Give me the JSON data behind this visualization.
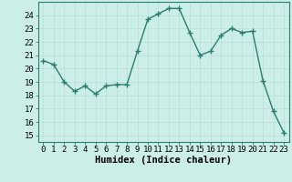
{
  "x": [
    0,
    1,
    2,
    3,
    4,
    5,
    6,
    7,
    8,
    9,
    10,
    11,
    12,
    13,
    14,
    15,
    16,
    17,
    18,
    19,
    20,
    21,
    22,
    23
  ],
  "y": [
    20.6,
    20.3,
    19.0,
    18.3,
    18.7,
    18.1,
    18.7,
    18.8,
    18.8,
    21.3,
    23.7,
    24.1,
    24.5,
    24.5,
    22.7,
    21.0,
    21.3,
    22.5,
    23.0,
    22.7,
    22.8,
    19.1,
    16.8,
    15.2
  ],
  "line_color": "#2a7d70",
  "marker": "+",
  "marker_size": 4,
  "bg_color": "#cceee8",
  "grid_color": "#b8ddd8",
  "xlabel": "Humidex (Indice chaleur)",
  "ytick_labels": [
    "15",
    "16",
    "17",
    "18",
    "19",
    "20",
    "21",
    "22",
    "23",
    "24"
  ],
  "ytick_values": [
    15,
    16,
    17,
    18,
    19,
    20,
    21,
    22,
    23,
    24
  ],
  "xlim": [
    -0.5,
    23.5
  ],
  "ylim": [
    14.5,
    25.0
  ],
  "tick_fontsize": 6.5,
  "xlabel_fontsize": 7.5,
  "line_width": 1.0,
  "marker_color": "#2a7d70"
}
